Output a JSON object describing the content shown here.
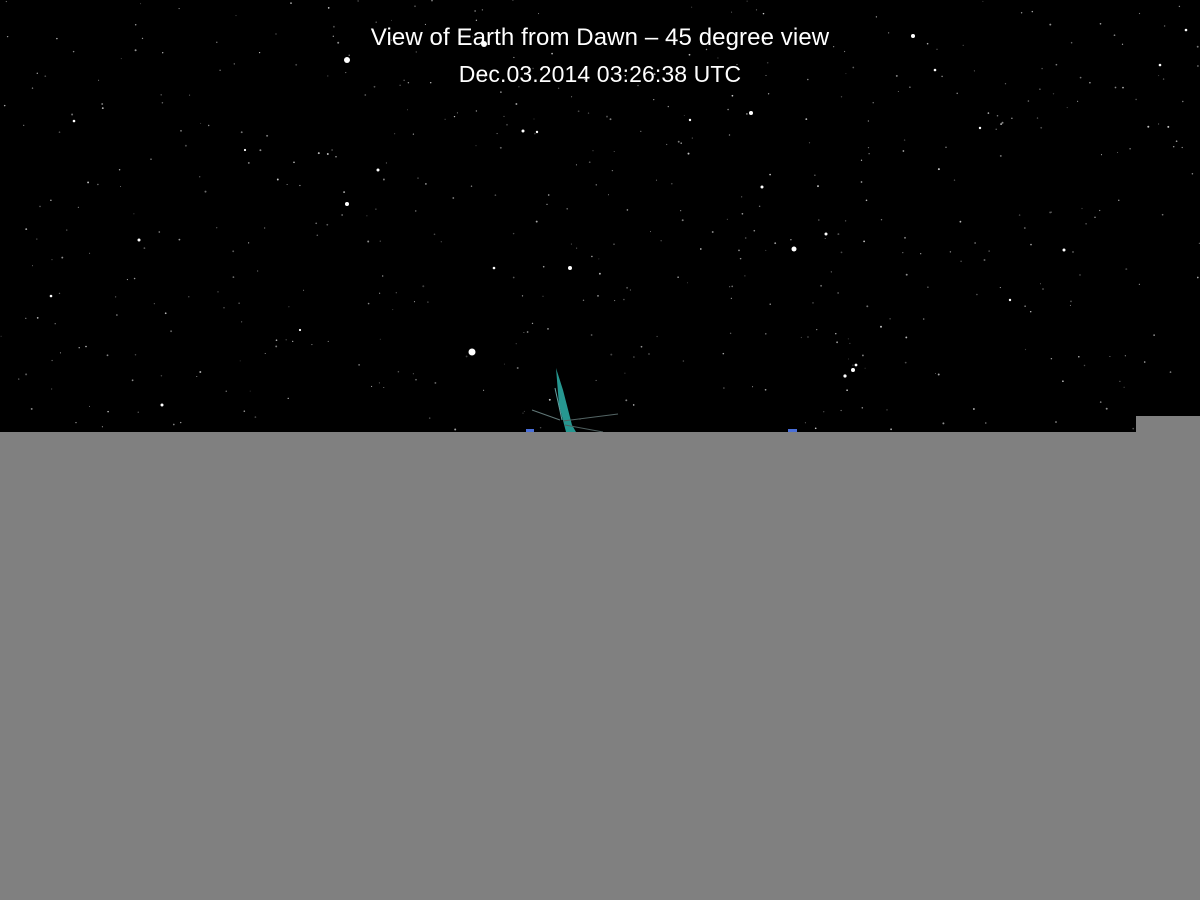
{
  "view": {
    "title": "View of Earth from Dawn – 45 degree view",
    "timestamp": "Dec.03.2014 03:26:38  UTC"
  },
  "colors": {
    "sky": "#000000",
    "text": "#ffffff",
    "stars": "#ffffff",
    "placeholder_region": "#808080",
    "spacecraft_beam": "#2aa7a0",
    "blue_markers": "#4a6fd8"
  },
  "icons": {
    "spacecraft": "spacecraft-icon"
  }
}
